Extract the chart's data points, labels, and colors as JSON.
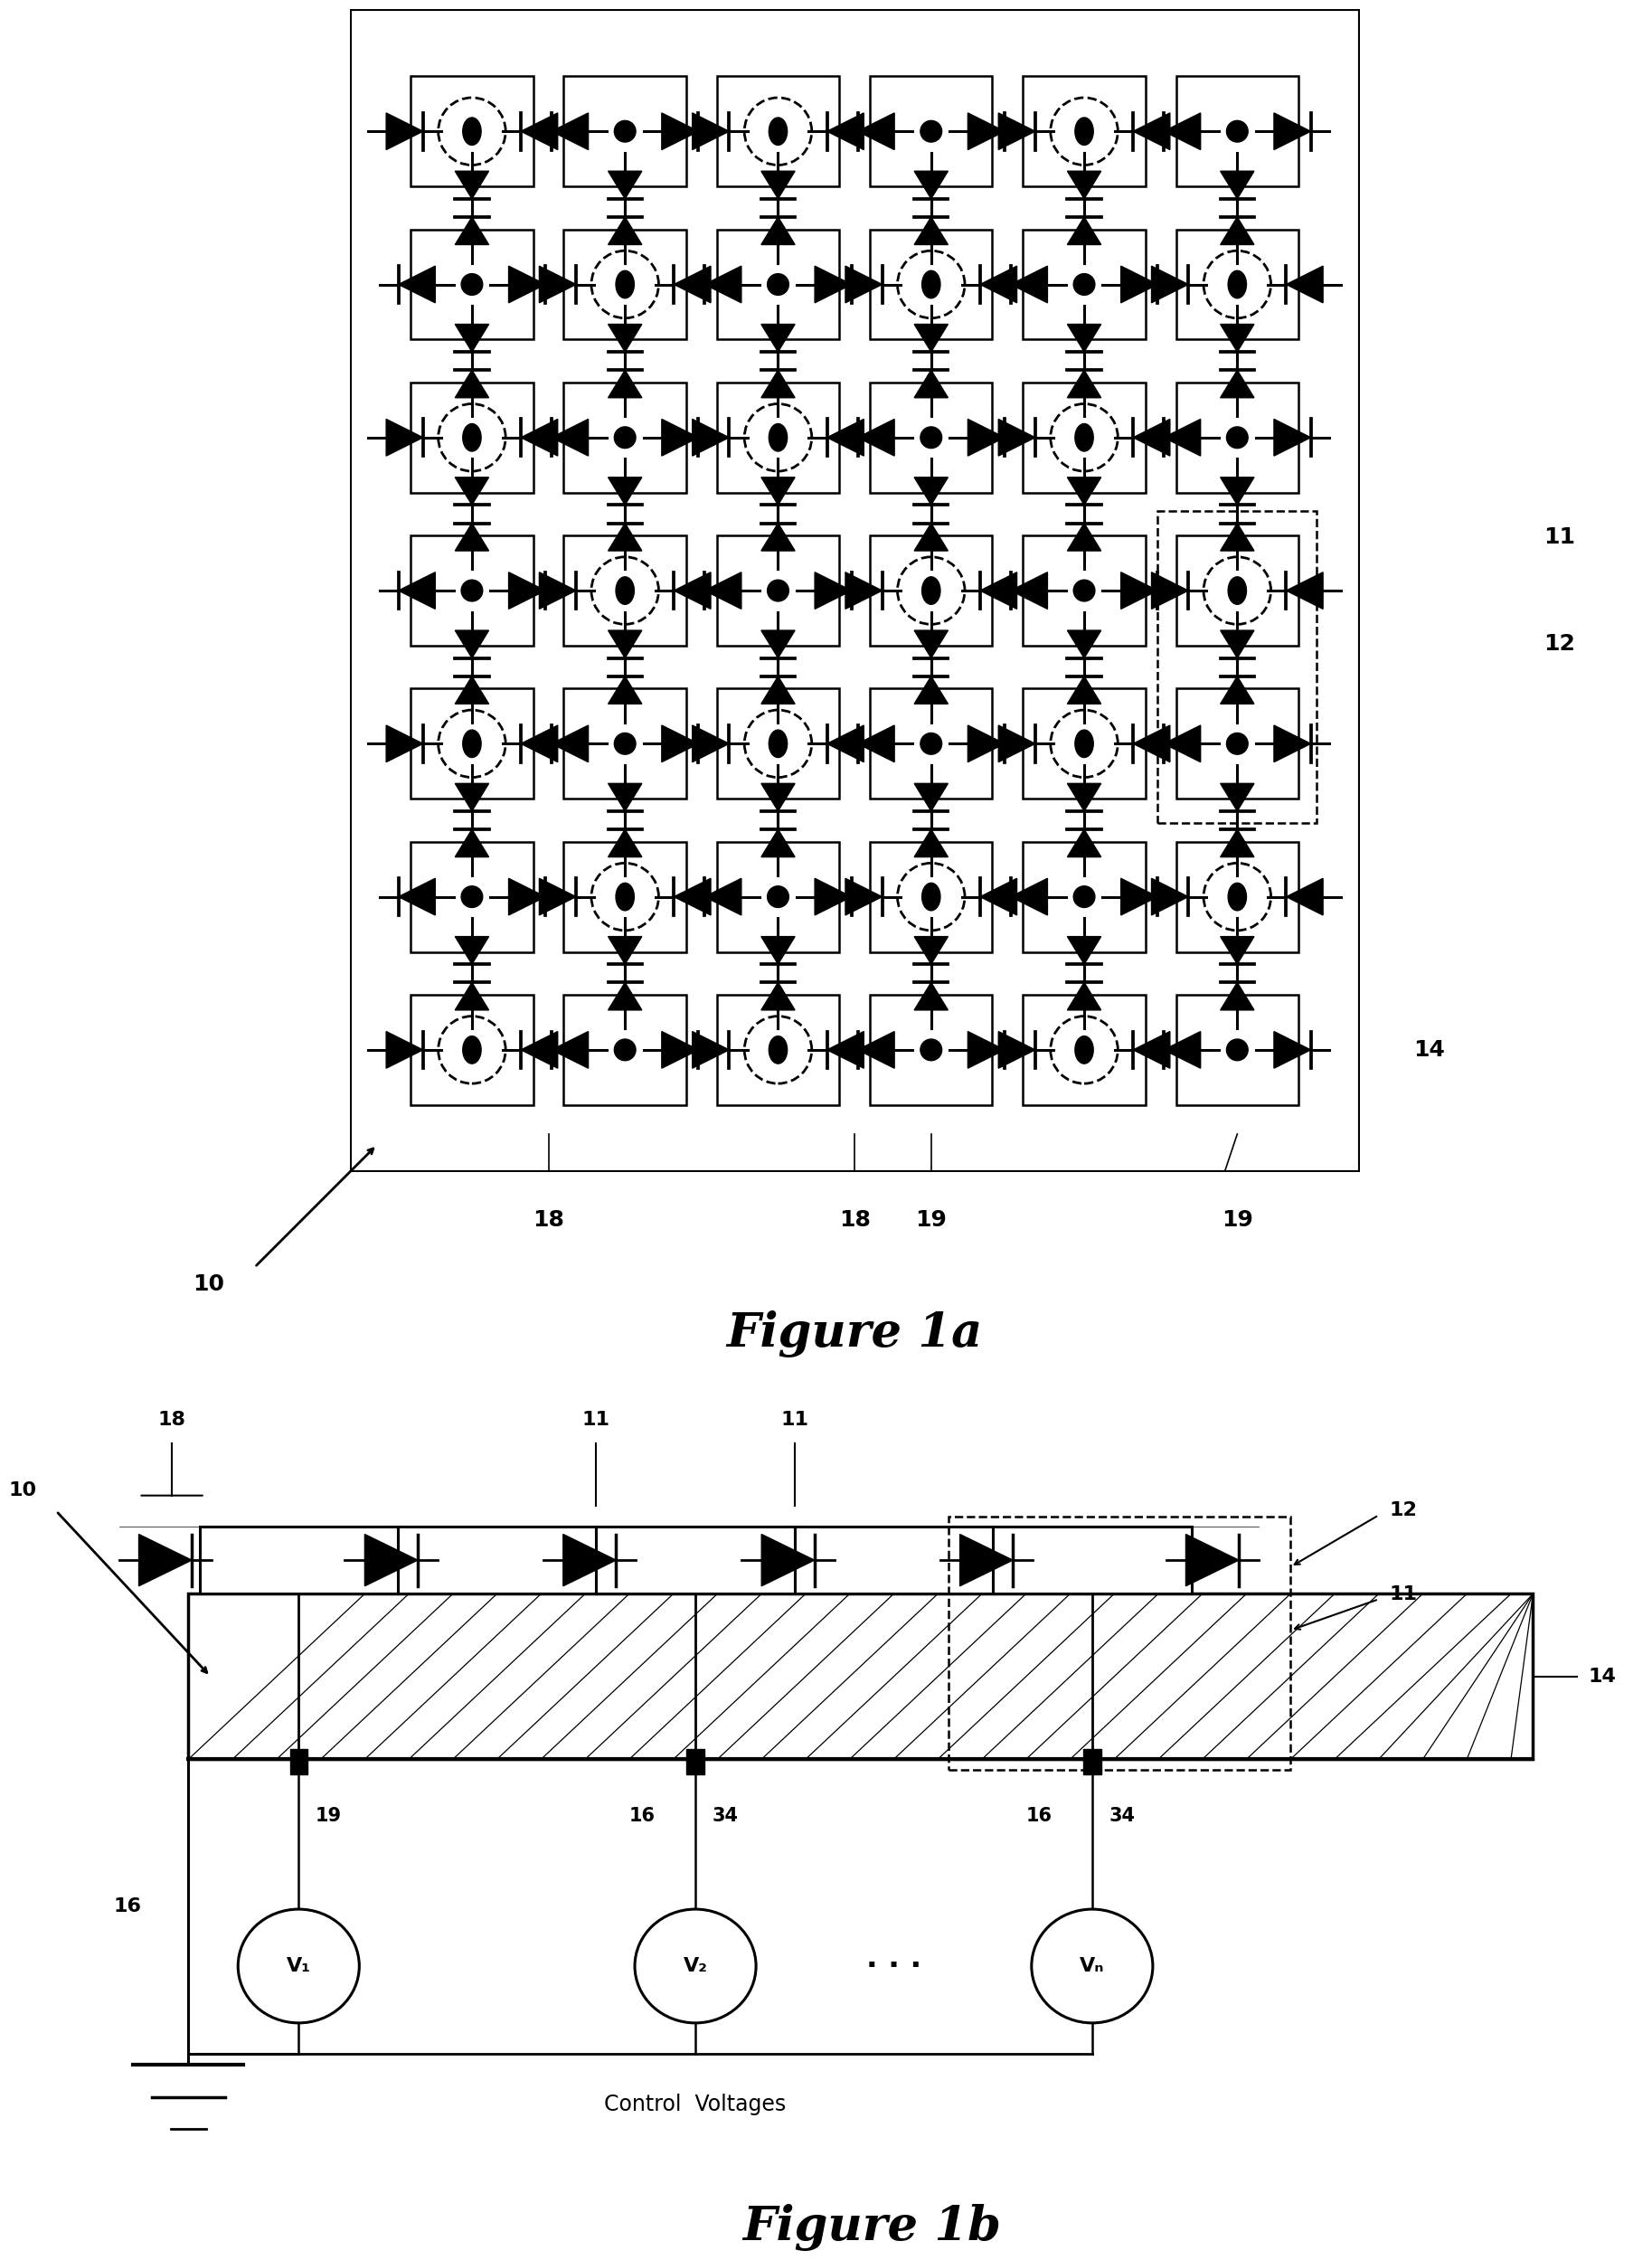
{
  "fig_width": 18.96,
  "fig_height": 25.73,
  "bg_color": "#ffffff",
  "fig1a_title": "Figure 1a",
  "fig1b_title": "Figure 1b",
  "n_cols": 6,
  "n_rows": 7,
  "labels": {
    "10": "10",
    "11": "11",
    "12": "12",
    "14": "14",
    "16": "16",
    "18": "18",
    "19": "19",
    "34": "34",
    "cv": "Control  Voltages",
    "v1": "V₁",
    "v2": "V₂",
    "vn": "Vₙ"
  }
}
